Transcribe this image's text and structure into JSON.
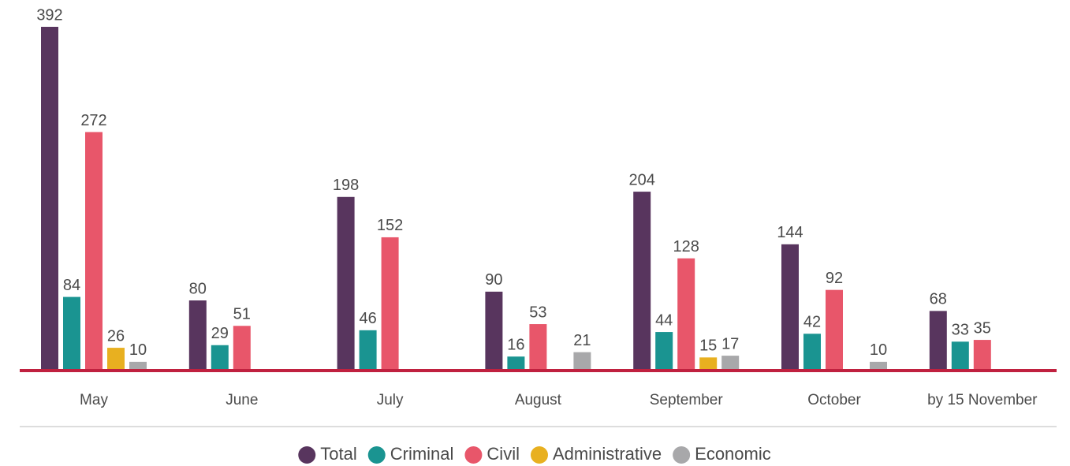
{
  "chart_data": {
    "type": "bar",
    "categories": [
      "May",
      "June",
      "July",
      "August",
      "September",
      "October",
      "by 15 November"
    ],
    "series": [
      {
        "name": "Total",
        "color": "#58355e",
        "values": [
          392,
          80,
          198,
          90,
          204,
          144,
          68
        ]
      },
      {
        "name": "Criminal",
        "color": "#1a9491",
        "values": [
          84,
          29,
          46,
          16,
          44,
          42,
          33
        ]
      },
      {
        "name": "Civil",
        "color": "#e8566a",
        "values": [
          272,
          51,
          152,
          53,
          128,
          92,
          35
        ]
      },
      {
        "name": "Administrative",
        "color": "#e8b020",
        "values": [
          26,
          null,
          null,
          null,
          15,
          null,
          null
        ]
      },
      {
        "name": "Economic",
        "color": "#a8a8aa",
        "values": [
          10,
          null,
          null,
          21,
          17,
          10,
          null
        ]
      }
    ]
  }
}
